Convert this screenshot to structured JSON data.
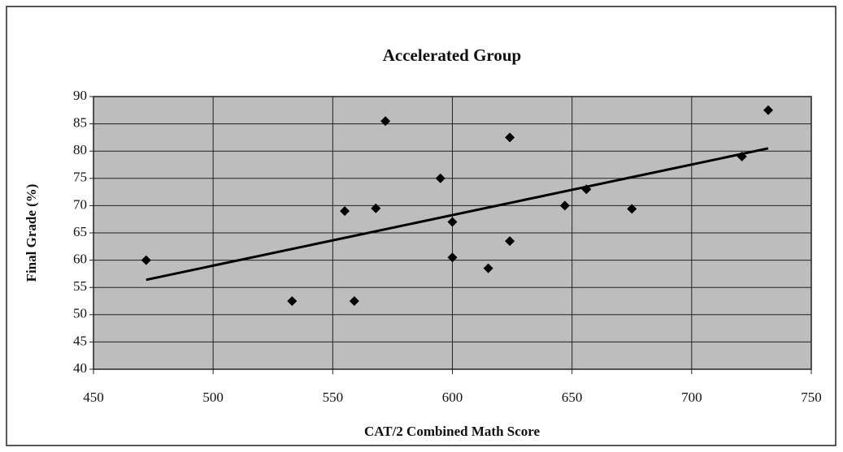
{
  "chart_data": {
    "type": "scatter",
    "title": "Accelerated Group",
    "x_label": "CAT/2 Combined Math Score",
    "y_label": "Final Grade (%)",
    "series": [
      {
        "color": "#000000",
        "x": [
          472,
          533,
          555,
          559,
          568,
          572,
          595,
          600,
          600,
          615,
          624,
          624,
          647,
          656,
          675,
          721,
          732
        ],
        "values": [
          60,
          52.5,
          69,
          52.5,
          69.5,
          85.5,
          75,
          67,
          60.5,
          58.5,
          82.5,
          63.5,
          70,
          73,
          69.4,
          79,
          87.5
        ]
      }
    ],
    "trendline": {
      "x": [
        472,
        732
      ],
      "y": [
        56.4,
        80.5
      ],
      "color": "#000000"
    },
    "xlim": [
      450,
      750
    ],
    "xticks": [
      450,
      500,
      550,
      600,
      650,
      700,
      750
    ],
    "ylim": [
      40,
      90
    ],
    "yticks": [
      40,
      45,
      50,
      55,
      60,
      65,
      70,
      75,
      80,
      85,
      90
    ],
    "grid": true
  }
}
